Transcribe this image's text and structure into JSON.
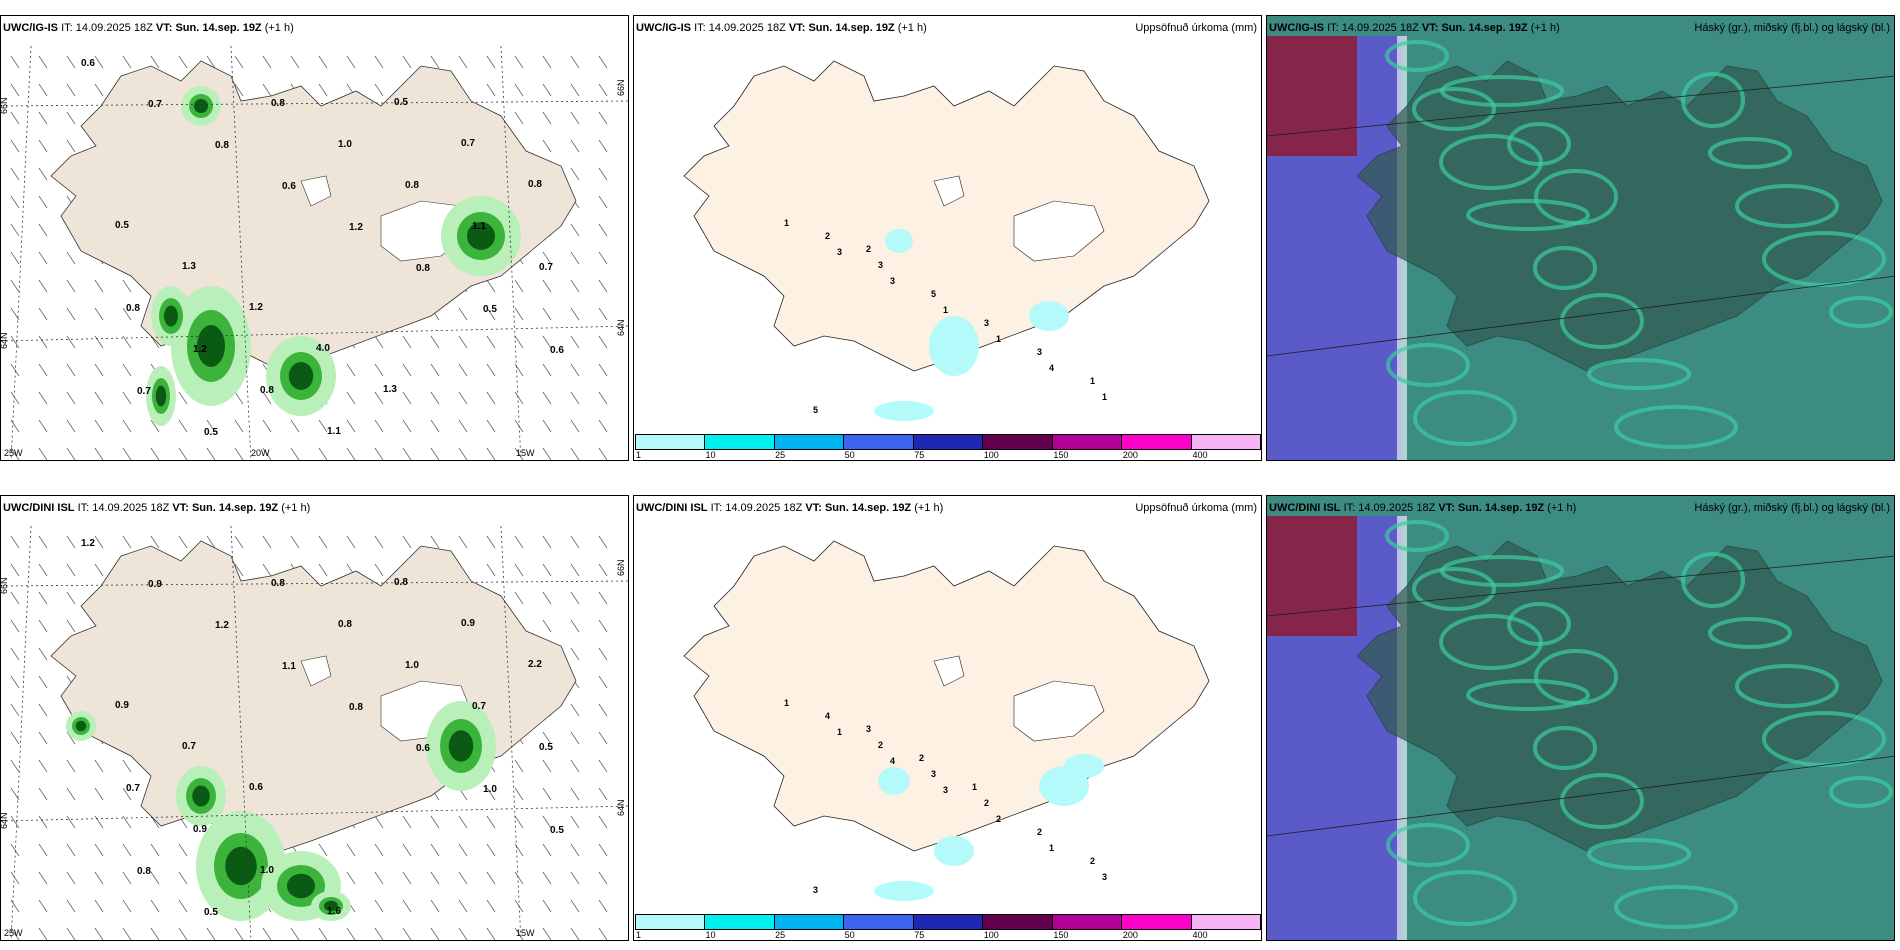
{
  "rows": [
    {
      "model": "UWC/IG-IS",
      "it_label": "IT:",
      "it_value": "14.09.2025 18Z",
      "vt_label": "VT:",
      "vt_value": "Sun. 14.sep. 19Z",
      "lead": "(+1 h)",
      "precip_title": "Uppsöfnuð úrkoma (mm)",
      "cloud_title": "Háský (gr.), miðský (fj.bl.) og lágský (bl.)",
      "lat_labels": [
        "66N",
        "64N"
      ],
      "lon_labels": [
        "25W",
        "20W",
        "15W"
      ],
      "lat_labels_right": [
        "66N",
        "64N"
      ],
      "wind_values": [
        "0.6",
        "0.7",
        "0.8",
        "0.6",
        "1.2",
        "0.8",
        "0.5",
        "0.6",
        "0.7",
        "0.5",
        "0.8",
        "1.0",
        "0.8",
        "1.1",
        "0.7",
        "0.8",
        "1.2",
        "0.8",
        "1.1",
        "0.5",
        "0.7",
        "0.8",
        "0.5",
        "1.3",
        "1.2",
        "4.0",
        "1.3"
      ],
      "precip_values": [
        "1",
        "3",
        "3",
        "1",
        "1",
        "4",
        "1",
        "2",
        "3",
        "5",
        "3",
        "3",
        "1",
        "5",
        "2"
      ]
    },
    {
      "model": "UWC/DINI ISL",
      "it_label": "IT:",
      "it_value": "14.09.2025 18Z",
      "vt_label": "VT:",
      "vt_value": "Sun. 14.sep. 19Z",
      "lead": "(+1 h)",
      "precip_title": "Uppsöfnuð úrkoma (mm)",
      "cloud_title": "Háský (gr.), miðský (fj.bl.) og lágský (bl.)",
      "lat_labels": [
        "66N",
        "64N"
      ],
      "lon_labels": [
        "25W",
        "15W"
      ],
      "lat_labels_right": [
        "66N",
        "64N"
      ],
      "wind_values": [
        "1.2",
        "0.9",
        "1.2",
        "1.1",
        "0.8",
        "0.6",
        "1.0",
        "0.5",
        "0.8",
        "0.5",
        "0.8",
        "0.8",
        "1.0",
        "0.7",
        "0.5",
        "0.7",
        "0.9",
        "1.0",
        "1.6",
        "0.8",
        "0.9",
        "2.2",
        "0.9",
        "0.7",
        "0.6"
      ],
      "precip_values": [
        "1",
        "1",
        "4",
        "3",
        "2",
        "1",
        "3",
        "4",
        "2",
        "3",
        "2",
        "2",
        "2",
        "3",
        "3",
        "2",
        "1"
      ]
    }
  ],
  "colorbar": {
    "colors": [
      "#b4fafa",
      "#00f0f0",
      "#00b4f0",
      "#3c64f0",
      "#1e28b4",
      "#640050",
      "#b40096",
      "#ff00c8",
      "#f5b4f5"
    ],
    "ticks": [
      "1",
      "10",
      "25",
      "50",
      "75",
      "100",
      "150",
      "200",
      "400"
    ]
  },
  "map_colors": {
    "land": "#efe4d8",
    "precip_land": "#fdf1e3",
    "green_light": "#b9f0b9",
    "green_mid": "#3cb43c",
    "green_dark": "#0a5a14",
    "cyan": "#b4fafa",
    "cloud_teal": "#3c8c82",
    "cloud_dark": "#325a50",
    "cloud_blue": "#5a5ac8",
    "cloud_red": "#8c1e3c",
    "cloud_green": "#3ccca0"
  }
}
